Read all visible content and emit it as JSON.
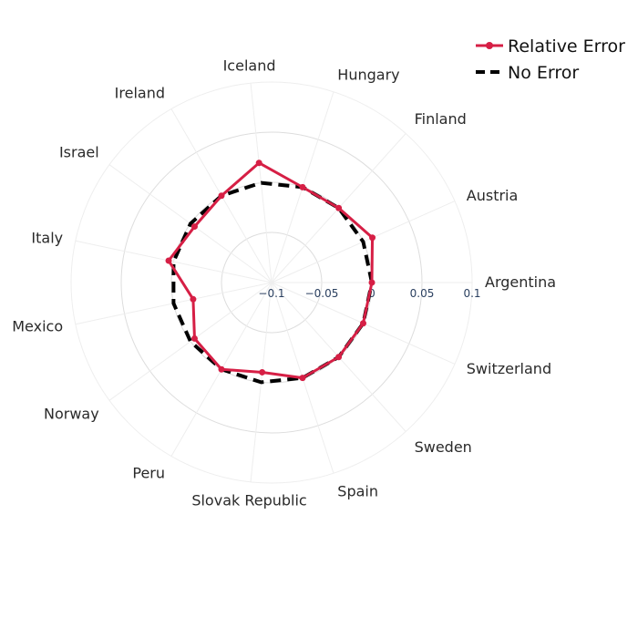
{
  "chart_data": {
    "type": "radar",
    "categories": [
      "Argentina",
      "Austria",
      "Finland",
      "Hungary",
      "Iceland",
      "Ireland",
      "Israel",
      "Italy",
      "Mexico",
      "Norway",
      "Peru",
      "Slovak Republic",
      "Spain",
      "Sweden",
      "Switzerland"
    ],
    "series": [
      {
        "name": "Relative Error",
        "color": "#d61f45",
        "dash": "solid",
        "marker": true,
        "values": [
          0.0,
          0.01,
          0.0,
          0.0,
          0.02,
          0.0,
          -0.005,
          0.005,
          -0.02,
          -0.005,
          0.0,
          -0.01,
          0.0,
          0.0,
          0.0
        ]
      },
      {
        "name": "No Error",
        "color": "#000000",
        "dash": "dash",
        "marker": false,
        "values": [
          0,
          0,
          0,
          0,
          0,
          0,
          0,
          0,
          0,
          0,
          0,
          0,
          0,
          0,
          0
        ]
      }
    ],
    "radial_range": [
      -0.1,
      0.1
    ],
    "radial_ticks": [
      -0.1,
      -0.05,
      0,
      0.05,
      0.1
    ],
    "radial_tick_labels": [
      "−0.1",
      "−0.05",
      "0",
      "0.05",
      "0.1"
    ],
    "grid": true,
    "legend_position": "top-right"
  }
}
